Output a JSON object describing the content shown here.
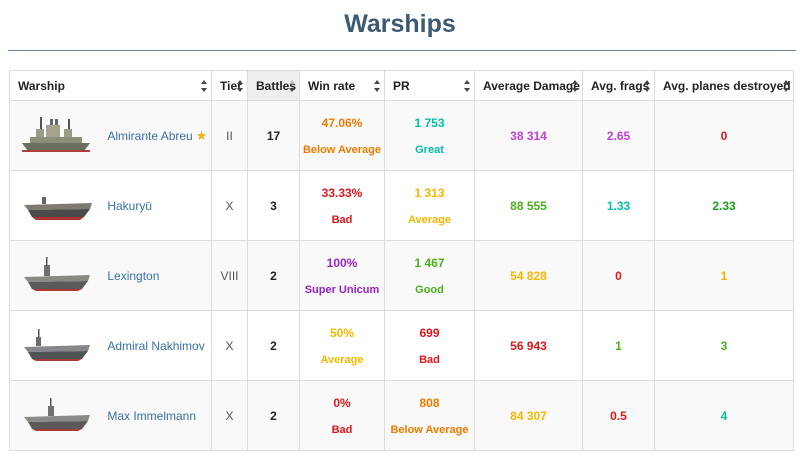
{
  "page": {
    "title": "Warships"
  },
  "colors": {
    "title": "#3d5a73",
    "link": "#3a6fa8",
    "bad": "#e0161c",
    "below_average": "#f07a00",
    "average": "#f5b800",
    "good": "#4bb01a",
    "very_good": "#1e9e1e",
    "great": "#00bfa5",
    "unicum": "#c43fd8",
    "super_unicum": "#9a22c6"
  },
  "table": {
    "headers": {
      "warship": "Warship",
      "tier": "Tier",
      "battles": "Battles",
      "win_rate": "Win rate",
      "pr": "PR",
      "avg_damage": "Average Damage",
      "avg_frags": "Avg. frags",
      "avg_planes": "Avg. planes destroyed"
    },
    "rows": [
      {
        "name": "Almirante Abreu",
        "premium_icon": "star-icon",
        "ship_icon": "cruiser-icon",
        "tier": "II",
        "battles": "17",
        "win_rate": "47.06%",
        "win_rate_label": "Below Average",
        "pr": "1 753",
        "pr_label": "Great",
        "damage": "38 314",
        "frags": "2.65",
        "planes": "0"
      },
      {
        "name": "Hakuryū",
        "ship_icon": "carrier-icon",
        "tier": "X",
        "battles": "3",
        "win_rate": "33.33%",
        "win_rate_label": "Bad",
        "pr": "1 313",
        "pr_label": "Average",
        "damage": "88 555",
        "frags": "1.33",
        "planes": "2.33"
      },
      {
        "name": "Lexington",
        "ship_icon": "carrier-icon",
        "tier": "VIII",
        "battles": "2",
        "win_rate": "100%",
        "win_rate_label": "Super Unicum",
        "pr": "1 467",
        "pr_label": "Good",
        "damage": "54 828",
        "frags": "0",
        "planes": "1"
      },
      {
        "name": "Admiral Nakhimov",
        "ship_icon": "carrier-icon",
        "tier": "X",
        "battles": "2",
        "win_rate": "50%",
        "win_rate_label": "Average",
        "pr": "699",
        "pr_label": "Bad",
        "damage": "56 943",
        "frags": "1",
        "planes": "3"
      },
      {
        "name": "Max Immelmann",
        "ship_icon": "carrier-icon",
        "tier": "X",
        "battles": "2",
        "win_rate": "0%",
        "win_rate_label": "Bad",
        "pr": "808",
        "pr_label": "Below Average",
        "damage": "84 307",
        "frags": "0.5",
        "planes": "4"
      }
    ]
  }
}
